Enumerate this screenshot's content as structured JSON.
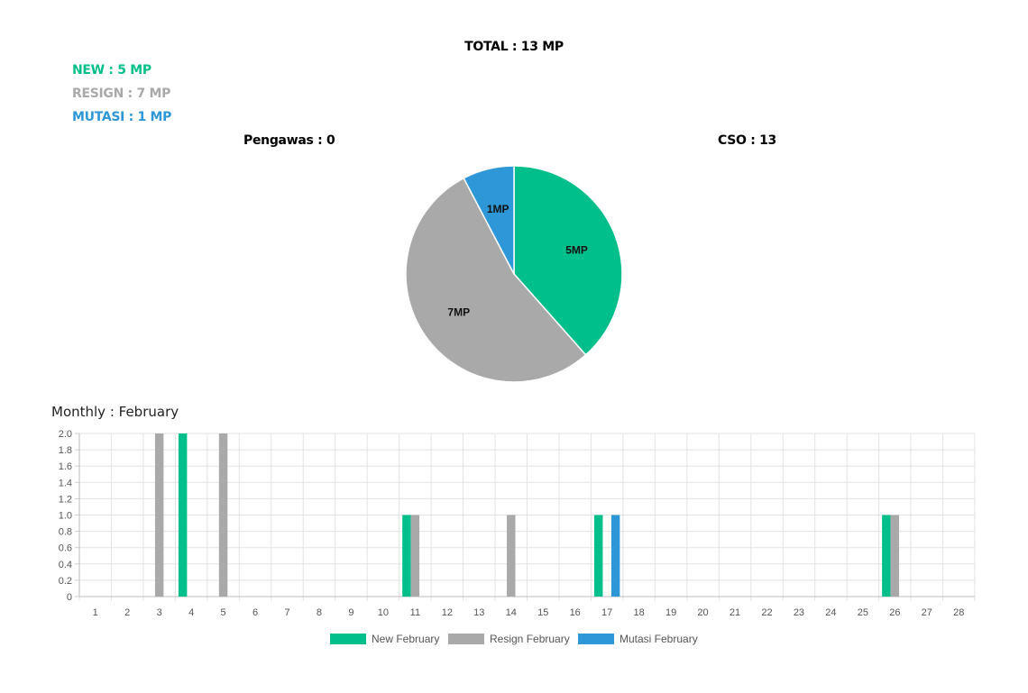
{
  "colors": {
    "new": "#00bf8b",
    "resign": "#a9a9a9",
    "mutasi": "#2e97d8"
  },
  "header": {
    "total": "TOTAL : 13 MP"
  },
  "summary": [
    {
      "label": "NEW : 5 MP",
      "color": "#00bf8b"
    },
    {
      "label": "RESIGN : 7 MP",
      "color": "#a9a9a9"
    },
    {
      "label": "MUTASI : 1 MP",
      "color": "#2e97d8"
    }
  ],
  "subtotals": {
    "pengawas": "Pengawas : 0",
    "cso": "CSO : 13"
  },
  "monthly_title": "Monthly : February",
  "chart_data": [
    {
      "type": "pie",
      "slices": [
        {
          "name": "New",
          "value": 5,
          "label": "5MP",
          "color": "#00bf8b"
        },
        {
          "name": "Resign",
          "value": 7,
          "label": "7MP",
          "color": "#a9a9a9"
        },
        {
          "name": "Mutasi",
          "value": 1,
          "label": "1MP",
          "color": "#2e97d8"
        }
      ]
    },
    {
      "type": "bar",
      "categories": [
        "1",
        "2",
        "3",
        "4",
        "5",
        "6",
        "7",
        "8",
        "9",
        "10",
        "11",
        "12",
        "13",
        "14",
        "15",
        "16",
        "17",
        "18",
        "19",
        "20",
        "21",
        "22",
        "23",
        "24",
        "25",
        "26",
        "27",
        "28"
      ],
      "series": [
        {
          "name": "New February",
          "color": "#00bf8b",
          "values": [
            0,
            0,
            0,
            2,
            0,
            0,
            0,
            0,
            0,
            0,
            1,
            0,
            0,
            0,
            0,
            0,
            1,
            0,
            0,
            0,
            0,
            0,
            0,
            0,
            0,
            1,
            0,
            0
          ]
        },
        {
          "name": "Resign February",
          "color": "#a9a9a9",
          "values": [
            0,
            0,
            2,
            0,
            2,
            0,
            0,
            0,
            0,
            0,
            1,
            0,
            0,
            1,
            0,
            0,
            0,
            0,
            0,
            0,
            0,
            0,
            0,
            0,
            0,
            1,
            0,
            0
          ]
        },
        {
          "name": "Mutasi February",
          "color": "#2e97d8",
          "values": [
            0,
            0,
            0,
            0,
            0,
            0,
            0,
            0,
            0,
            0,
            0,
            0,
            0,
            0,
            0,
            0,
            1,
            0,
            0,
            0,
            0,
            0,
            0,
            0,
            0,
            0,
            0,
            0
          ]
        }
      ],
      "ylim": [
        0,
        2
      ],
      "yticks": [
        "0",
        "0.2",
        "0.4",
        "0.6",
        "0.8",
        "1.0",
        "1.2",
        "1.4",
        "1.6",
        "1.8",
        "2.0"
      ],
      "grid": true,
      "legend": "bottom"
    }
  ]
}
